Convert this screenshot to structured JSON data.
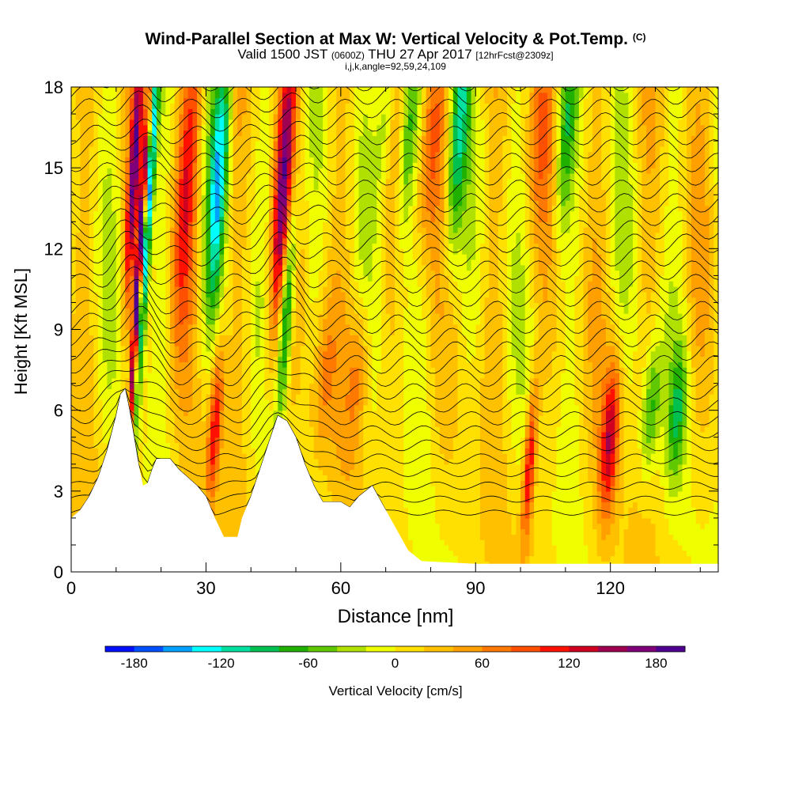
{
  "header": {
    "title": "Wind-Parallel Section at Max W: Vertical Velocity & Pot.Temp.",
    "copyright": "(C)",
    "valid_prefix": "Valid 1500 JST",
    "valid_utc": "(0600Z)",
    "valid_date": "THU 27 Apr 2017",
    "forecast": "[12hrFcst@2309z]",
    "indices": "i,j,k,angle=92,59,24,109"
  },
  "chart_data": {
    "type": "heatmap",
    "title": "Wind-Parallel Section at Max W: Vertical Velocity & Pot.Temp.",
    "xlabel": "Distance [nm]",
    "ylabel": "Height [Kft MSL]",
    "xlim": [
      0,
      144
    ],
    "ylim": [
      0,
      18
    ],
    "x_ticks": [
      "0",
      "30",
      "60",
      "90",
      "120"
    ],
    "x_tick_values": [
      0,
      30,
      60,
      90,
      120
    ],
    "y_ticks": [
      "0",
      "3",
      "6",
      "9",
      "12",
      "15",
      "18"
    ],
    "y_tick_values": [
      0,
      3,
      6,
      9,
      12,
      15,
      18
    ],
    "colorbar": {
      "label": "Vertical Velocity [cm/s]",
      "tick_labels": [
        "-180",
        "-120",
        "-60",
        "0",
        "60",
        "120",
        "180"
      ],
      "tick_values": [
        -180,
        -120,
        -60,
        0,
        60,
        120,
        180
      ],
      "min": -200,
      "max": 200,
      "step": 20,
      "colors": [
        "#0010ff",
        "#0050ff",
        "#00a0ff",
        "#00ffff",
        "#00e0a0",
        "#00c050",
        "#20b000",
        "#60c800",
        "#b0e000",
        "#f0ff00",
        "#ffe000",
        "#ffc000",
        "#ffa000",
        "#ff7800",
        "#ff5000",
        "#ff1000",
        "#d00020",
        "#a00050",
        "#80007a",
        "#500090"
      ]
    },
    "terrain_kft": [
      [
        0,
        2.0
      ],
      [
        2,
        2.3
      ],
      [
        4,
        2.8
      ],
      [
        6,
        3.5
      ],
      [
        8,
        4.5
      ],
      [
        10,
        5.8
      ],
      [
        11,
        6.6
      ],
      [
        12,
        6.8
      ],
      [
        13,
        6.0
      ],
      [
        14,
        5.0
      ],
      [
        15,
        4.0
      ],
      [
        16,
        3.2
      ],
      [
        17,
        3.3
      ],
      [
        18,
        3.8
      ],
      [
        19,
        4.2
      ],
      [
        22,
        4.2
      ],
      [
        24,
        3.8
      ],
      [
        26,
        3.5
      ],
      [
        28,
        3.2
      ],
      [
        30,
        2.8
      ],
      [
        32,
        2.0
      ],
      [
        34,
        1.3
      ],
      [
        37,
        1.3
      ],
      [
        38,
        2.0
      ],
      [
        40,
        2.8
      ],
      [
        42,
        3.8
      ],
      [
        44,
        4.8
      ],
      [
        46,
        5.8
      ],
      [
        48,
        5.6
      ],
      [
        50,
        5.0
      ],
      [
        52,
        4.0
      ],
      [
        54,
        3.2
      ],
      [
        56,
        2.6
      ],
      [
        60,
        2.6
      ],
      [
        62,
        2.4
      ],
      [
        64,
        2.8
      ],
      [
        67,
        3.2
      ],
      [
        69,
        2.6
      ],
      [
        71,
        2.0
      ],
      [
        73,
        1.4
      ],
      [
        75,
        0.8
      ],
      [
        78,
        0.4
      ],
      [
        90,
        0.3
      ],
      [
        144,
        0.3
      ]
    ],
    "w_cells_cm_s": [
      {
        "x": 15,
        "z": 11,
        "w": 200,
        "sx": 0.7,
        "sz": 7
      },
      {
        "x": 14,
        "z": 15,
        "w": 140,
        "sx": 1.2,
        "sz": 5
      },
      {
        "x": 17,
        "z": 13,
        "w": -170,
        "sx": 1.0,
        "sz": 7
      },
      {
        "x": 26,
        "z": 15,
        "w": 90,
        "sx": 2.5,
        "sz": 6
      },
      {
        "x": 32,
        "z": 5.5,
        "w": 110,
        "sx": 1.5,
        "sz": 3
      },
      {
        "x": 33,
        "z": 15,
        "w": -130,
        "sx": 2.0,
        "sz": 5
      },
      {
        "x": 47,
        "z": 14,
        "w": 140,
        "sx": 2.0,
        "sz": 6
      },
      {
        "x": 48,
        "z": 10,
        "w": -140,
        "sx": 1.5,
        "sz": 4
      },
      {
        "x": 56,
        "z": 7,
        "w": 50,
        "sx": 2.5,
        "sz": 3
      },
      {
        "x": 64,
        "z": 7.5,
        "w": 60,
        "sx": 2.5,
        "sz": 3
      },
      {
        "x": 70,
        "z": 17,
        "w": -60,
        "sx": 2.0,
        "sz": 3
      },
      {
        "x": 75,
        "z": 16,
        "w": -70,
        "sx": 2.0,
        "sz": 4
      },
      {
        "x": 80,
        "z": 16,
        "w": 70,
        "sx": 2.5,
        "sz": 4
      },
      {
        "x": 86,
        "z": 16,
        "w": -100,
        "sx": 2.0,
        "sz": 5
      },
      {
        "x": 102,
        "z": 4,
        "w": 120,
        "sx": 1.3,
        "sz": 3
      },
      {
        "x": 120,
        "z": 5,
        "w": 120,
        "sx": 2.0,
        "sz": 3
      },
      {
        "x": 129,
        "z": 6,
        "w": -80,
        "sx": 2.0,
        "sz": 2.5
      },
      {
        "x": 135,
        "z": 6,
        "w": -70,
        "sx": 2.0,
        "sz": 2.5
      },
      {
        "x": 110,
        "z": 16,
        "w": -70,
        "sx": 2.0,
        "sz": 4
      },
      {
        "x": 104,
        "z": 16,
        "w": 40,
        "sx": 3.0,
        "sz": 4
      }
    ],
    "theta_contours": "numerous isentropes, rising over ridges near x=12 and x=47 nm; contour labels unreadable"
  }
}
